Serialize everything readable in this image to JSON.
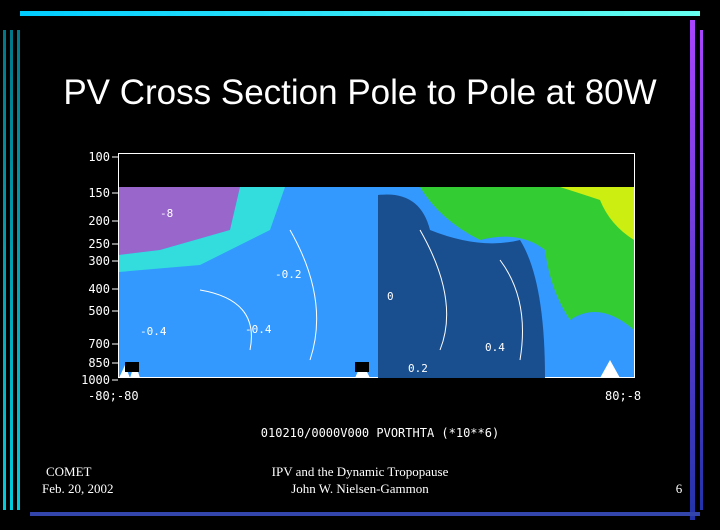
{
  "slide": {
    "title": "PV Cross Section Pole to Pole at 80W",
    "plot": {
      "y_labels": [
        "100",
        "150",
        "200",
        "250",
        "300",
        "400",
        "500",
        "700",
        "850",
        "1000"
      ],
      "x_labels": [
        "-80;-80",
        "80;-8"
      ],
      "contour_labels": [
        "-8",
        "-0.2",
        "-0.4",
        "0",
        "0.2",
        "0.4",
        "-0.4"
      ],
      "caption": "010210/0000V000  PVORTHTA (*10**6)"
    },
    "footer": {
      "left": [
        "COMET",
        "Feb. 20, 2002"
      ],
      "center": [
        "IPV and the Dynamic Tropopause",
        "John W. Nielsen-Gammon"
      ],
      "page": "6"
    }
  }
}
